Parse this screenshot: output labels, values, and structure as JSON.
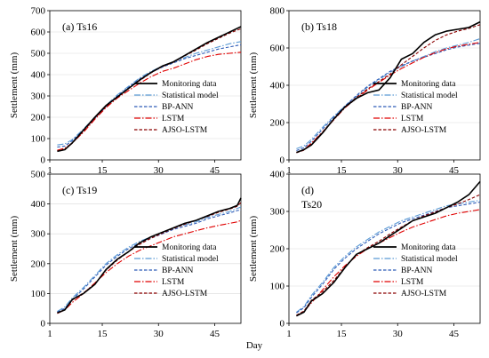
{
  "styles": {
    "Monitoring data": {
      "color": "#000000",
      "width": 1.6,
      "dash": ""
    },
    "Statistical model": {
      "color": "#5b9bd5",
      "width": 1.1,
      "dash": "7 2 1.5 2"
    },
    "BP-ANN": {
      "color": "#2f5cb8",
      "width": 1.1,
      "dash": "3.5 2"
    },
    "LSTM": {
      "color": "#e00000",
      "width": 1.1,
      "dash": "7 2 1.5 2"
    },
    "AJSO-LSTM": {
      "color": "#8b0000",
      "width": 1.1,
      "dash": "3.5 2"
    }
  },
  "common": {
    "xlabel": "Day",
    "ylabel": "Settlement (mm)"
  },
  "chart_data": [
    {
      "type": "line",
      "label": "(a) Ts16",
      "xlim": [
        1,
        52
      ],
      "xticks": [
        1,
        15,
        30,
        45
      ],
      "ylim": [
        0,
        700
      ],
      "yticks": [
        0,
        100,
        200,
        300,
        400,
        500,
        600,
        700
      ],
      "legend": "bottom-right",
      "x": [
        3,
        5,
        7,
        10,
        13,
        16,
        19,
        22,
        25,
        28,
        31,
        34,
        37,
        40,
        43,
        46,
        49,
        52
      ],
      "series": [
        {
          "name": "Monitoring data",
          "values": [
            40,
            48,
            80,
            140,
            200,
            255,
            295,
            335,
            375,
            410,
            440,
            460,
            490,
            520,
            550,
            575,
            600,
            625
          ]
        },
        {
          "name": "Statistical model",
          "values": [
            70,
            75,
            95,
            145,
            200,
            255,
            305,
            345,
            385,
            415,
            440,
            460,
            480,
            500,
            515,
            530,
            545,
            555
          ]
        },
        {
          "name": "BP-ANN",
          "values": [
            60,
            65,
            90,
            140,
            195,
            250,
            300,
            340,
            380,
            410,
            435,
            455,
            475,
            490,
            505,
            520,
            530,
            540
          ]
        },
        {
          "name": "LSTM",
          "values": [
            45,
            55,
            80,
            130,
            190,
            245,
            290,
            325,
            360,
            390,
            415,
            430,
            450,
            470,
            485,
            495,
            500,
            505
          ]
        },
        {
          "name": "AJSO-LSTM",
          "values": [
            42,
            50,
            78,
            135,
            195,
            250,
            295,
            335,
            372,
            408,
            438,
            458,
            488,
            515,
            545,
            570,
            595,
            615
          ]
        }
      ]
    },
    {
      "type": "line",
      "label": "(b) Ts18",
      "xlim": [
        1,
        52
      ],
      "xticks": [
        1,
        15,
        30,
        45
      ],
      "ylim": [
        0,
        800
      ],
      "yticks": [
        0,
        200,
        400,
        600,
        800
      ],
      "legend": "bottom-right",
      "x": [
        3,
        5,
        7,
        10,
        13,
        16,
        19,
        22,
        25,
        28,
        31,
        34,
        37,
        40,
        43,
        46,
        49,
        52
      ],
      "series": [
        {
          "name": "Monitoring data",
          "values": [
            40,
            55,
            80,
            145,
            220,
            285,
            330,
            360,
            375,
            440,
            540,
            570,
            630,
            670,
            690,
            700,
            710,
            740
          ]
        },
        {
          "name": "Statistical model",
          "values": [
            60,
            75,
            110,
            175,
            235,
            290,
            340,
            390,
            430,
            470,
            500,
            530,
            555,
            580,
            600,
            615,
            630,
            650
          ]
        },
        {
          "name": "BP-ANN",
          "values": [
            50,
            65,
            100,
            165,
            230,
            290,
            345,
            395,
            435,
            475,
            505,
            530,
            550,
            570,
            590,
            605,
            615,
            625
          ]
        },
        {
          "name": "LSTM",
          "values": [
            40,
            55,
            90,
            150,
            215,
            280,
            330,
            375,
            415,
            455,
            490,
            520,
            550,
            575,
            595,
            610,
            620,
            630
          ]
        },
        {
          "name": "AJSO-LSTM",
          "values": [
            38,
            52,
            85,
            150,
            220,
            285,
            335,
            380,
            420,
            460,
            510,
            555,
            600,
            640,
            670,
            690,
            705,
            725
          ]
        }
      ]
    },
    {
      "type": "line",
      "label": "(c) Ts19",
      "xlim": [
        1,
        52
      ],
      "xticks": [
        1,
        15,
        30,
        45
      ],
      "ylim": [
        0,
        500
      ],
      "yticks": [
        0,
        100,
        200,
        300,
        400,
        500
      ],
      "legend": "bottom-right",
      "x": [
        3,
        5,
        7,
        10,
        13,
        16,
        19,
        22,
        25,
        28,
        31,
        34,
        37,
        40,
        43,
        46,
        49,
        51,
        52
      ],
      "series": [
        {
          "name": "Monitoring data",
          "values": [
            35,
            45,
            80,
            100,
            130,
            180,
            215,
            240,
            270,
            290,
            305,
            320,
            335,
            345,
            360,
            375,
            385,
            395,
            420
          ]
        },
        {
          "name": "Statistical model",
          "values": [
            40,
            55,
            85,
            120,
            160,
            200,
            230,
            255,
            275,
            290,
            305,
            320,
            330,
            340,
            355,
            365,
            375,
            385,
            390
          ]
        },
        {
          "name": "BP-ANN",
          "values": [
            38,
            50,
            80,
            115,
            155,
            195,
            225,
            250,
            270,
            285,
            300,
            315,
            325,
            335,
            350,
            360,
            370,
            378,
            380
          ]
        },
        {
          "name": "LSTM",
          "values": [
            33,
            45,
            70,
            100,
            135,
            170,
            200,
            225,
            245,
            260,
            275,
            290,
            300,
            310,
            320,
            328,
            335,
            340,
            345
          ]
        },
        {
          "name": "AJSO-LSTM",
          "values": [
            35,
            46,
            78,
            102,
            132,
            178,
            212,
            240,
            265,
            285,
            302,
            318,
            332,
            345,
            358,
            372,
            383,
            392,
            405
          ]
        }
      ]
    },
    {
      "type": "line",
      "label": "(d) Ts20",
      "xlim": [
        1,
        52
      ],
      "xticks": [
        1,
        15,
        30,
        45
      ],
      "ylim": [
        0,
        400
      ],
      "yticks": [
        0,
        100,
        200,
        300,
        400
      ],
      "legend": "bottom-right",
      "x": [
        3,
        5,
        7,
        10,
        13,
        16,
        19,
        22,
        25,
        28,
        31,
        34,
        37,
        40,
        43,
        46,
        49,
        52
      ],
      "series": [
        {
          "name": "Monitoring data",
          "values": [
            20,
            30,
            60,
            80,
            110,
            150,
            185,
            200,
            215,
            235,
            255,
            275,
            285,
            295,
            310,
            325,
            345,
            380
          ]
        },
        {
          "name": "Statistical model",
          "values": [
            30,
            45,
            75,
            110,
            150,
            180,
            205,
            225,
            245,
            260,
            275,
            285,
            295,
            305,
            315,
            320,
            325,
            330
          ]
        },
        {
          "name": "BP-ANN",
          "values": [
            28,
            42,
            70,
            105,
            145,
            175,
            200,
            220,
            240,
            255,
            270,
            280,
            290,
            300,
            310,
            315,
            320,
            325
          ]
        },
        {
          "name": "LSTM",
          "values": [
            20,
            32,
            55,
            90,
            125,
            155,
            180,
            200,
            215,
            230,
            245,
            258,
            268,
            278,
            288,
            295,
            300,
            305
          ]
        },
        {
          "name": "AJSO-LSTM",
          "values": [
            22,
            33,
            62,
            85,
            115,
            152,
            183,
            203,
            220,
            240,
            258,
            275,
            288,
            298,
            310,
            320,
            332,
            345
          ]
        }
      ]
    }
  ]
}
